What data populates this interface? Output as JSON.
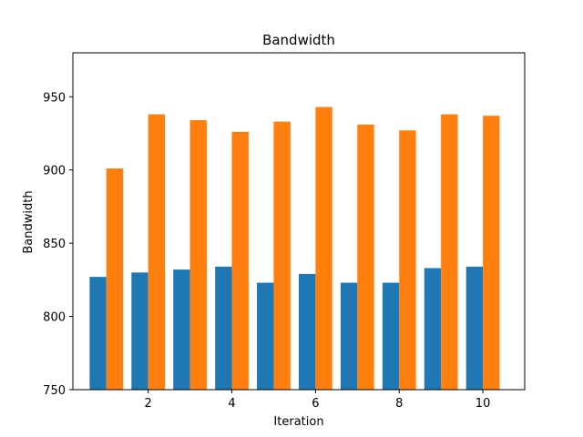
{
  "chart_data": {
    "type": "bar",
    "title": "Bandwidth",
    "xlabel": "Iteration",
    "ylabel": "Bandwidth",
    "x": [
      1,
      2,
      3,
      4,
      5,
      6,
      7,
      8,
      9,
      10
    ],
    "xlim": [
      0.2,
      11.0
    ],
    "ylim": [
      750,
      980
    ],
    "xticks": [
      2,
      4,
      6,
      8,
      10
    ],
    "yticks": [
      750,
      800,
      850,
      900,
      950
    ],
    "bar_width": 0.4,
    "grid": false,
    "series": [
      {
        "color": "#1f77b4",
        "offset": -0.2,
        "values": [
          827,
          830,
          832,
          834,
          823,
          829,
          823,
          823,
          833,
          834
        ]
      },
      {
        "color": "#ff7f0e",
        "offset": 0.2,
        "values": [
          901,
          938,
          934,
          926,
          933,
          943,
          931,
          927,
          938,
          937
        ]
      }
    ]
  }
}
